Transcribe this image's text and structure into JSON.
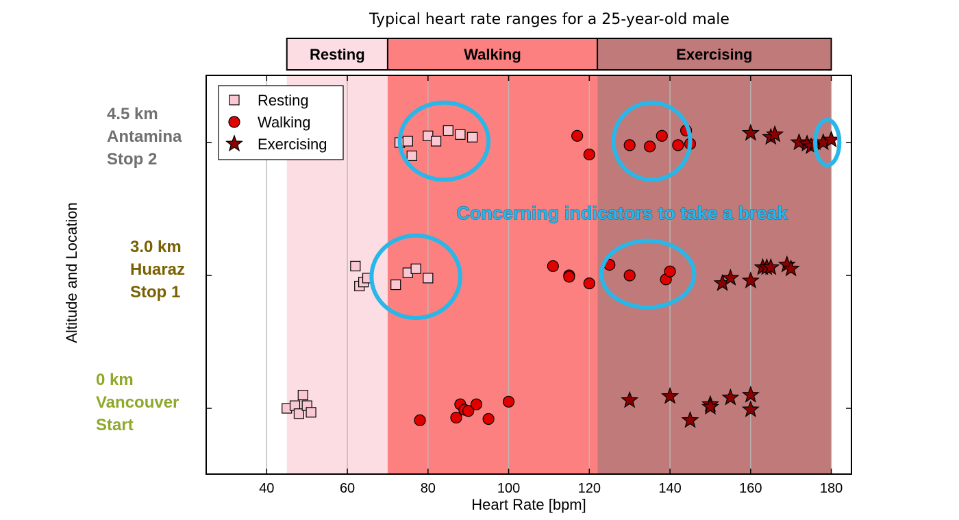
{
  "chart_data": {
    "type": "scatter",
    "title": "Typical heart rate ranges for a 25-year-old male",
    "xlabel": "Heart Rate [bpm]",
    "ylabel": "Altitude and Location",
    "xlim": [
      25,
      185
    ],
    "xticks": [
      40,
      60,
      80,
      100,
      120,
      140,
      160,
      180
    ],
    "grid": "vertical",
    "colors": {
      "resting_band": "#fcdde3",
      "walking_band": "#fc8080",
      "exercising_band": "#c07a7a",
      "resting_marker": "#f9c8d3",
      "walking_marker": "#e00000",
      "exercising_marker": "#8b0000",
      "highlight": "#29b6e8"
    },
    "bands": [
      {
        "label": "Resting",
        "range": [
          45,
          70
        ]
      },
      {
        "label": "Walking",
        "range": [
          70,
          122
        ]
      },
      {
        "label": "Exercising",
        "range": [
          122,
          180
        ]
      }
    ],
    "categories": [
      {
        "lines": [
          "0 km",
          "Vancouver",
          "Start"
        ],
        "color": "#8da82b"
      },
      {
        "lines": [
          "3.0 km",
          "Huaraz",
          "Stop 1"
        ],
        "color": "#7a6000"
      },
      {
        "lines": [
          "4.5 km",
          "Antamina",
          "Stop 2"
        ],
        "color": "#707070"
      }
    ],
    "legend": [
      "Resting",
      "Walking",
      "Exercising"
    ],
    "legend_position": "top-left",
    "series": [
      {
        "name": "Resting",
        "marker": "square",
        "points": [
          [
            45,
            0
          ],
          [
            47,
            0.02
          ],
          [
            48,
            -0.04
          ],
          [
            49,
            0.1
          ],
          [
            50,
            0.02
          ],
          [
            51,
            -0.03
          ],
          [
            62,
            1.07
          ],
          [
            63,
            0.92
          ],
          [
            64,
            0.95
          ],
          [
            65,
            0.98
          ],
          [
            72,
            0.93
          ],
          [
            75,
            1.02
          ],
          [
            77,
            1.05
          ],
          [
            80,
            0.98
          ],
          [
            73,
            2
          ],
          [
            75,
            2.01
          ],
          [
            76,
            1.9
          ],
          [
            80,
            2.05
          ],
          [
            82,
            2.01
          ],
          [
            85,
            2.09
          ],
          [
            88,
            2.06
          ],
          [
            91,
            2.04
          ]
        ]
      },
      {
        "name": "Walking",
        "marker": "circle",
        "points": [
          [
            78,
            -0.09
          ],
          [
            87,
            -0.07
          ],
          [
            88,
            0.03
          ],
          [
            89,
            -0.01
          ],
          [
            90,
            -0.02
          ],
          [
            92,
            0.03
          ],
          [
            95,
            -0.08
          ],
          [
            100,
            0.05
          ],
          [
            111,
            1.07
          ],
          [
            115,
            1
          ],
          [
            115,
            0.99
          ],
          [
            120,
            0.94
          ],
          [
            125,
            1.08
          ],
          [
            130,
            1
          ],
          [
            139,
            0.97
          ],
          [
            140,
            1.03
          ],
          [
            117,
            2.05
          ],
          [
            120,
            1.91
          ],
          [
            130,
            1.98
          ],
          [
            135,
            1.97
          ],
          [
            138,
            2.05
          ],
          [
            142,
            1.98
          ],
          [
            144,
            2.09
          ],
          [
            145,
            1.99
          ]
        ]
      },
      {
        "name": "Exercising",
        "marker": "star",
        "points": [
          [
            130,
            0.06
          ],
          [
            140,
            0.09
          ],
          [
            145,
            -0.09
          ],
          [
            150,
            0.03
          ],
          [
            150,
            0.01
          ],
          [
            155,
            0.08
          ],
          [
            160,
            0.1
          ],
          [
            160,
            -0.01
          ],
          [
            153,
            0.94
          ],
          [
            155,
            0.98
          ],
          [
            160,
            0.96
          ],
          [
            163,
            1.06
          ],
          [
            164,
            1.06
          ],
          [
            165,
            1.06
          ],
          [
            169,
            1.08
          ],
          [
            170,
            1.05
          ],
          [
            160,
            2.07
          ],
          [
            165,
            2.04
          ],
          [
            166,
            2.06
          ],
          [
            172,
            2
          ],
          [
            174,
            1.99
          ],
          [
            175,
            1.97
          ],
          [
            176,
            2
          ],
          [
            178,
            2
          ],
          [
            180,
            2.02
          ]
        ]
      }
    ],
    "annotation": "Concerning indicators to take a break",
    "highlight_ellipses": [
      {
        "x_range": [
          73,
          95
        ],
        "y_range": [
          1.72,
          2.3
        ]
      },
      {
        "x_range": [
          126,
          145
        ],
        "y_range": [
          1.72,
          2.3
        ]
      },
      {
        "x_range": [
          176,
          182
        ],
        "y_range": [
          1.83,
          2.17
        ]
      },
      {
        "x_range": [
          66,
          88
        ],
        "y_range": [
          0.68,
          1.3
        ]
      },
      {
        "x_range": [
          123,
          146
        ],
        "y_range": [
          0.76,
          1.26
        ]
      }
    ]
  }
}
